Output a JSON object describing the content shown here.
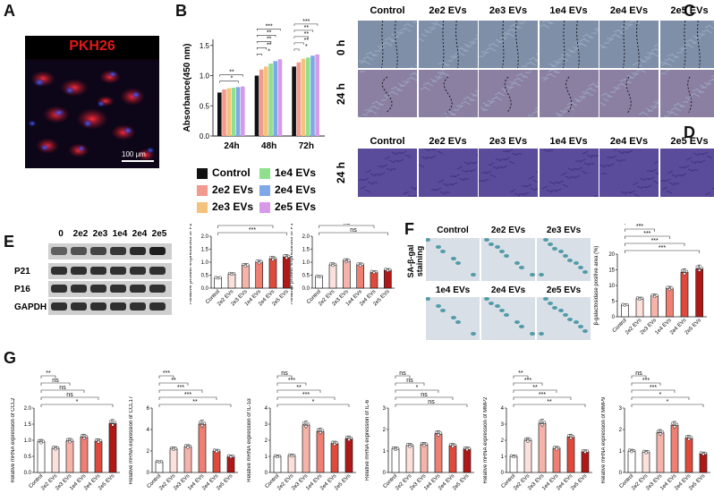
{
  "panels": {
    "A": {
      "letter": "A",
      "stain": "PKH26",
      "scale_bar": "100 μm"
    },
    "B": {
      "letter": "B",
      "legend": [
        {
          "label": "Control",
          "color": "#111111"
        },
        {
          "label": "1e4 EVs",
          "color": "#8ee08e"
        },
        {
          "label": "2e2 EVs",
          "color": "#f29a8e"
        },
        {
          "label": "2e4 EVs",
          "color": "#7fa8e8"
        },
        {
          "label": "2e3 EVs",
          "color": "#f4c27a"
        },
        {
          "label": "2e5 EVs",
          "color": "#d79ae8"
        }
      ]
    },
    "C": {
      "letter": "C",
      "columns": [
        "Control",
        "2e2 EVs",
        "2e3 EVs",
        "1e4 EVs",
        "2e4 EVs",
        "2e5 EVs"
      ],
      "rows": [
        "0 h",
        "24 h"
      ]
    },
    "D": {
      "letter": "D",
      "columns": [
        "Control",
        "2e2 EVs",
        "2e3 EVs",
        "1e4 EVs",
        "2e4 EVs",
        "2e5 EVs"
      ],
      "row": "24 h"
    },
    "E": {
      "letter": "E",
      "lanes": [
        "0",
        "2e2",
        "2e3",
        "1e4",
        "2e4",
        "2e5"
      ],
      "proteins": [
        "P21",
        "P16",
        "GAPDH"
      ]
    },
    "F": {
      "letter": "F",
      "stain_label": "SA-β-gal staining",
      "top": [
        "Control",
        "2e2 EVs",
        "2e3 EVs"
      ],
      "bottom": [
        "1e4 EVs",
        "2e4 EVs",
        "2e5 EVs"
      ]
    },
    "G": {
      "letter": "G"
    }
  },
  "chart_data": [
    {
      "id": "B",
      "type": "bar",
      "ylabel": "Absorbance(450 nm)",
      "ylim": [
        0,
        1.6
      ],
      "yticks": [
        "0.0",
        "0.5",
        "1.0",
        "1.5"
      ],
      "categories": [
        "24h",
        "48h",
        "72h"
      ],
      "series": [
        {
          "name": "Control",
          "values": [
            0.72,
            1.0,
            1.15
          ]
        },
        {
          "name": "2e2 EVs",
          "values": [
            0.77,
            1.1,
            1.22
          ]
        },
        {
          "name": "2e3 EVs",
          "values": [
            0.79,
            1.15,
            1.28
          ]
        },
        {
          "name": "1e4 EVs",
          "values": [
            0.8,
            1.2,
            1.3
          ]
        },
        {
          "name": "2e4 EVs",
          "values": [
            0.81,
            1.24,
            1.33
          ]
        },
        {
          "name": "2e5 EVs",
          "values": [
            0.82,
            1.27,
            1.35
          ]
        }
      ],
      "sig": [
        [
          "24h",
          "*"
        ],
        [
          "24h",
          "**"
        ],
        [
          "48h",
          "*"
        ],
        [
          "48h",
          "**"
        ],
        [
          "48h",
          "**"
        ],
        [
          "48h",
          "**"
        ],
        [
          "48h",
          "***"
        ],
        [
          "72h",
          "*"
        ],
        [
          "72h",
          "**"
        ],
        [
          "72h",
          "**"
        ],
        [
          "72h",
          "**"
        ],
        [
          "72h",
          "***"
        ]
      ]
    },
    {
      "id": "E1",
      "type": "bar",
      "ylabel": "Relative protein expressions of P21",
      "ylim": [
        0,
        2.0
      ],
      "yticks": [
        "0.0",
        "0.5",
        "1.0",
        "1.5",
        "2.0"
      ],
      "categories": [
        "Control",
        "2e2 EVs",
        "2e3 EVs",
        "1e4 EVs",
        "2e4 EVs",
        "2e5 EVs"
      ],
      "values": [
        0.4,
        0.55,
        0.88,
        1.0,
        1.13,
        1.2
      ],
      "sig": [
        "ns",
        "**",
        "**",
        "**",
        "***"
      ]
    },
    {
      "id": "E2",
      "type": "bar",
      "ylabel": "Relative protein expressions of P16",
      "ylim": [
        0,
        2.0
      ],
      "yticks": [
        "0.0",
        "0.5",
        "1.0",
        "1.5",
        "2.0"
      ],
      "categories": [
        "Control",
        "2e2 EVs",
        "2e3 EVs",
        "1e4 EVs",
        "2e4 EVs",
        "2e5 EVs"
      ],
      "values": [
        0.45,
        0.9,
        1.05,
        0.9,
        0.62,
        0.7
      ],
      "sig": [
        "*",
        "*",
        "ns",
        "ns",
        "ns"
      ]
    },
    {
      "id": "F",
      "type": "bar",
      "ylabel": "β-galactosidase positive area (%)",
      "ylim": [
        0,
        20
      ],
      "yticks": [
        "0",
        "5",
        "10",
        "15",
        "20"
      ],
      "categories": [
        "Control",
        "2e2 EVs",
        "2e3 EVs",
        "1e4 EVs",
        "2e4 EVs",
        "2e5 EVs"
      ],
      "values": [
        3.8,
        5.8,
        6.7,
        9.0,
        14.2,
        15.3
      ],
      "sig": [
        "***",
        "***",
        "***",
        "***",
        "***"
      ]
    },
    {
      "id": "G1",
      "type": "bar",
      "ylabel": "Relative mRNA expression of CCL2",
      "ylim": [
        0,
        2.0
      ],
      "yticks": [
        "0.0",
        "0.5",
        "1.0",
        "1.5",
        "2.0"
      ],
      "categories": [
        "Control",
        "2e2 EVs",
        "2e3 EVs",
        "1e4 EVs",
        "2e4 EVs",
        "2e5 EVs"
      ],
      "values": [
        0.95,
        0.75,
        0.98,
        1.1,
        0.97,
        1.52
      ],
      "sig": [
        "**",
        "ns",
        "ns",
        "ns",
        "*"
      ]
    },
    {
      "id": "G2",
      "type": "bar",
      "ylabel": "Relative mRNA expression of CCL17",
      "ylim": [
        0,
        6
      ],
      "yticks": [
        "0",
        "2",
        "4",
        "6"
      ],
      "categories": [
        "Control",
        "2e2 EVs",
        "2e3 EVs",
        "1e4 EVs",
        "2e4 EVs",
        "2e5 EVs"
      ],
      "values": [
        1.0,
        2.2,
        2.4,
        4.5,
        2.0,
        1.5
      ],
      "sig": [
        "***",
        "**",
        "***",
        "***",
        "**"
      ]
    },
    {
      "id": "G3",
      "type": "bar",
      "ylabel": "Relative mRNA expression of IL-1α",
      "ylim": [
        0,
        4
      ],
      "yticks": [
        "0",
        "1",
        "2",
        "3",
        "4"
      ],
      "categories": [
        "Control",
        "2e2 EVs",
        "2e3 EVs",
        "1e4 EVs",
        "2e4 EVs",
        "2e5 EVs"
      ],
      "values": [
        1.0,
        1.05,
        2.95,
        2.55,
        1.8,
        2.1
      ],
      "sig": [
        "ns",
        "***",
        "**",
        "***",
        "*"
      ]
    },
    {
      "id": "G4",
      "type": "bar",
      "ylabel": "Relative mRNA expression of IL-6",
      "ylim": [
        0,
        3
      ],
      "yticks": [
        "0",
        "1",
        "2",
        "3"
      ],
      "categories": [
        "Control",
        "2e2 EVs",
        "2e3 EVs",
        "1e4 EVs",
        "2e4 EVs",
        "2e5 EVs"
      ],
      "values": [
        1.1,
        1.25,
        1.3,
        1.8,
        1.25,
        1.1
      ],
      "sig": [
        "ns",
        "ns",
        "*",
        "ns",
        "ns"
      ]
    },
    {
      "id": "G5",
      "type": "bar",
      "ylabel": "Relative mRNA expression of MMP2",
      "ylim": [
        0,
        4
      ],
      "yticks": [
        "0",
        "1",
        "2",
        "3",
        "4"
      ],
      "categories": [
        "Control",
        "2e2 EVs",
        "2e3 EVs",
        "1e4 EVs",
        "2e4 EVs",
        "2e5 EVs"
      ],
      "values": [
        1.0,
        2.0,
        3.05,
        1.5,
        2.2,
        1.3
      ],
      "sig": [
        "**",
        "***",
        "**",
        "***",
        "**"
      ]
    },
    {
      "id": "G6",
      "type": "bar",
      "ylabel": "Relative mRNA expression of MMP9",
      "ylim": [
        0,
        3
      ],
      "yticks": [
        "0",
        "1",
        "2",
        "3"
      ],
      "categories": [
        "Control",
        "2e2 EVs",
        "2e3 EVs",
        "1e4 EVs",
        "2e4 EVs",
        "2e5 EVs"
      ],
      "values": [
        1.0,
        0.95,
        1.85,
        2.2,
        1.6,
        0.88
      ],
      "sig": [
        "ns",
        "***",
        "***",
        "*",
        "*"
      ]
    }
  ]
}
